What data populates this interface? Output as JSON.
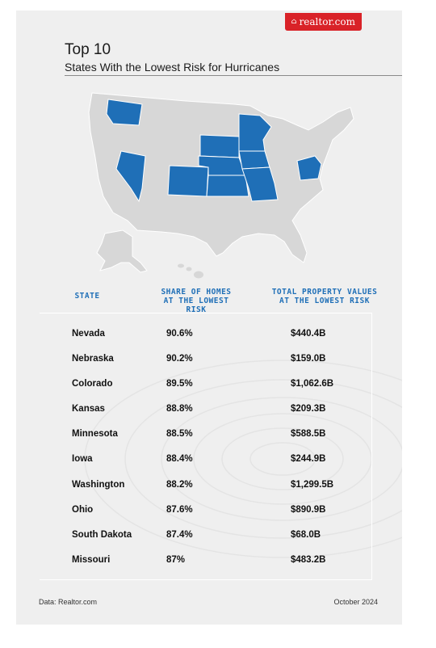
{
  "brand": {
    "logo_text": "realtor.com",
    "logo_icon": "house-icon",
    "accent_color": "#d92228"
  },
  "title": {
    "main": "Top 10",
    "sub": "States With the Lowest Risk for Hurricanes"
  },
  "map": {
    "highlight_color": "#1f6fb7",
    "base_color": "#d7d7d7",
    "highlighted_states": [
      "Washington",
      "Nevada",
      "Colorado",
      "South Dakota",
      "Nebraska",
      "Kansas",
      "Minnesota",
      "Iowa",
      "Missouri",
      "Ohio"
    ]
  },
  "table": {
    "headers": {
      "state": "STATE",
      "share_line1": "SHARE OF HOMES",
      "share_line2": "AT THE LOWEST RISK",
      "total_line1": "TOTAL PROPERTY VALUES",
      "total_line2": "AT THE LOWEST RISK"
    },
    "header_color": "#1f6fb7",
    "rows": [
      {
        "state": "Nevada",
        "share": "90.6%",
        "value": "$440.4B"
      },
      {
        "state": "Nebraska",
        "share": "90.2%",
        "value": "$159.0B"
      },
      {
        "state": "Colorado",
        "share": "89.5%",
        "value": "$1,062.6B"
      },
      {
        "state": "Kansas",
        "share": "88.8%",
        "value": "$209.3B"
      },
      {
        "state": "Minnesota",
        "share": "88.5%",
        "value": "$588.5B"
      },
      {
        "state": "Iowa",
        "share": "88.4%",
        "value": "$244.9B"
      },
      {
        "state": "Washington",
        "share": "88.2%",
        "value": "$1,299.5B"
      },
      {
        "state": "Ohio",
        "share": "87.6%",
        "value": "$890.9B"
      },
      {
        "state": "South Dakota",
        "share": "87.4%",
        "value": "$68.0B"
      },
      {
        "state": "Missouri",
        "share": "87%",
        "value": "$483.2B"
      }
    ]
  },
  "footer": {
    "source": "Data: Realtor.com",
    "date": "October 2024"
  }
}
